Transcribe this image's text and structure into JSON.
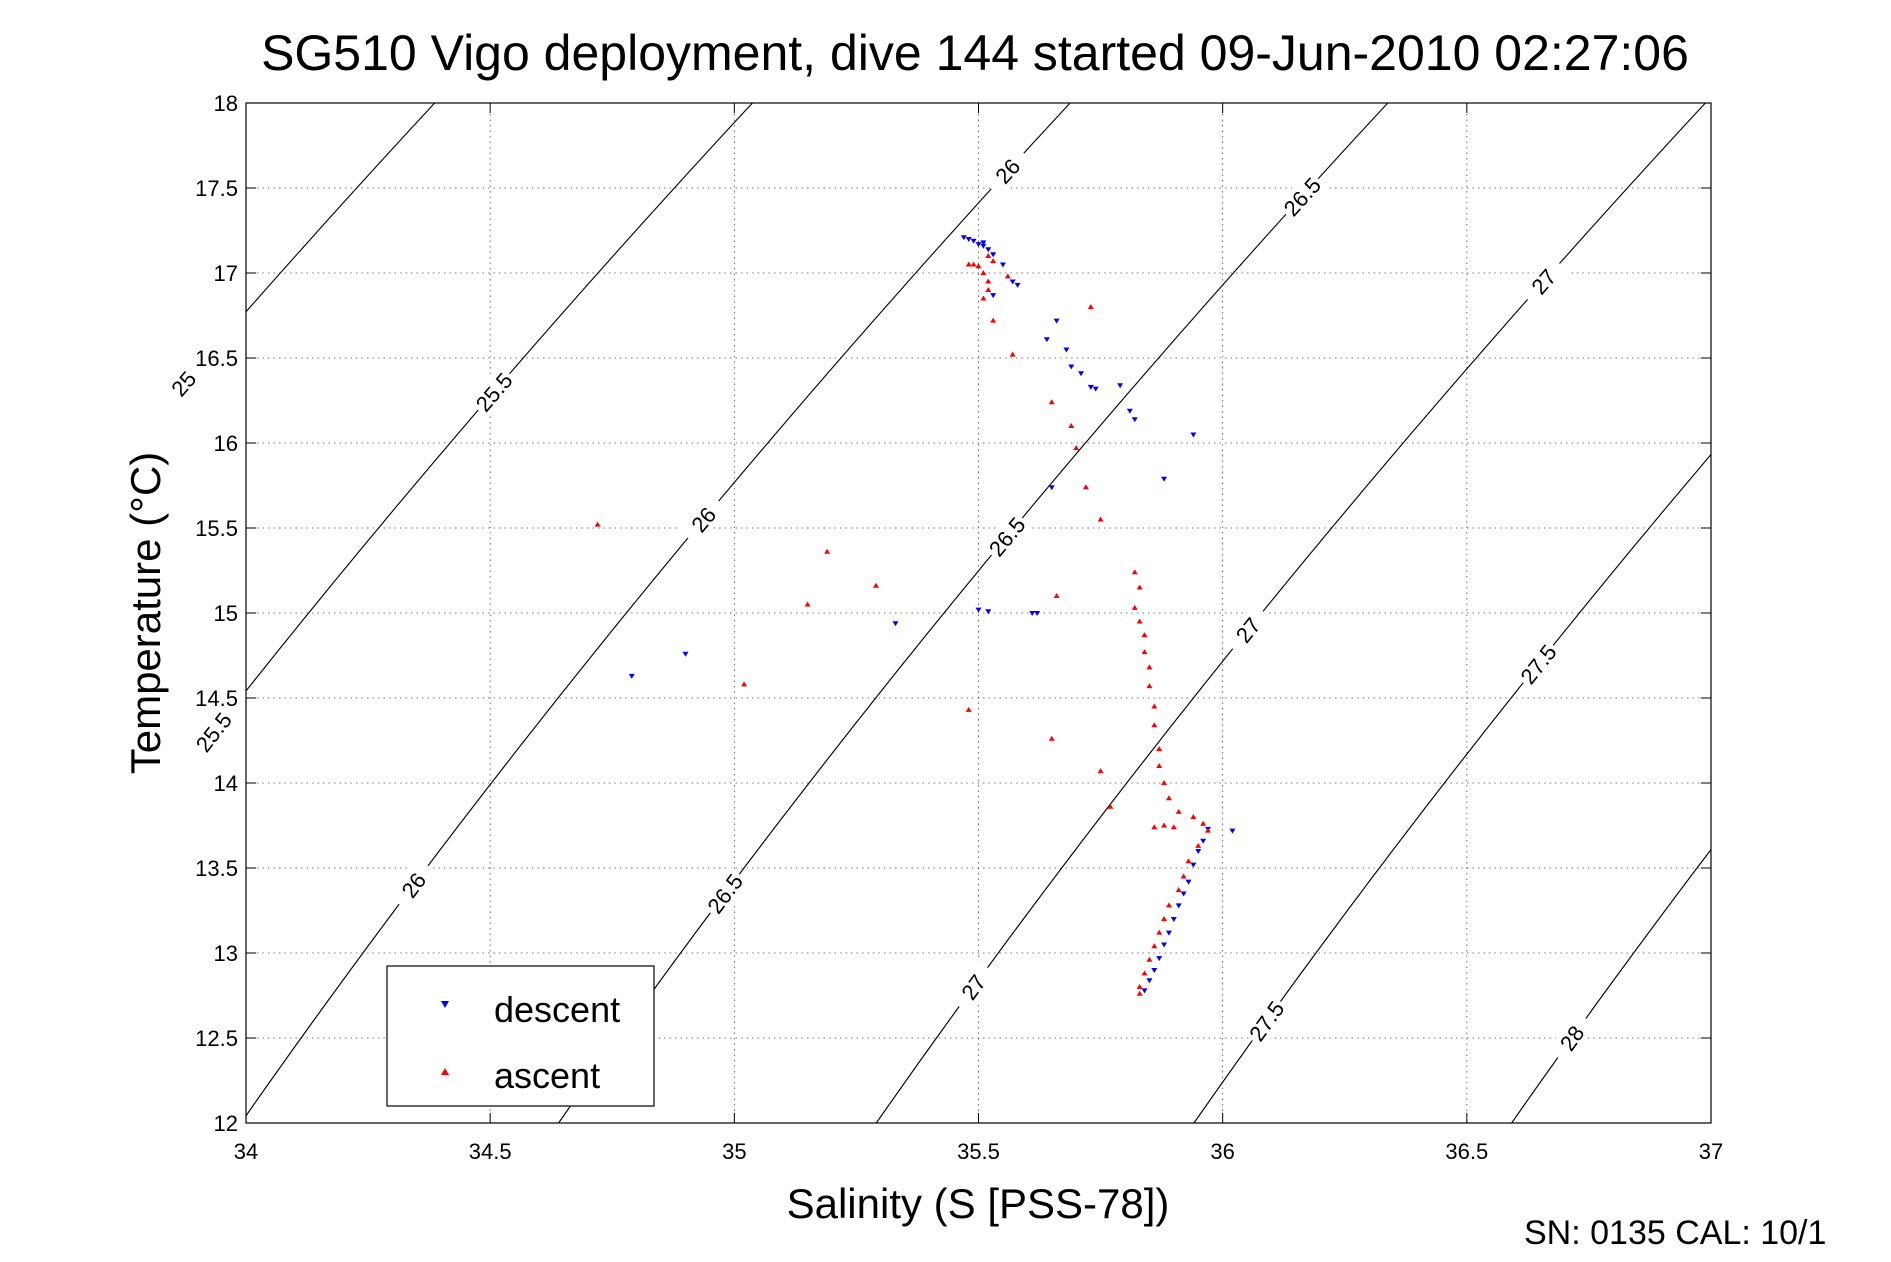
{
  "chart_data": {
    "type": "scatter",
    "title": "SG510 Vigo deployment, dive 144 started 09-Jun-2010 02:27:06",
    "xlabel": "Salinity (S [PSS-78])",
    "ylabel": "Temperature (°C)",
    "xlim": [
      34,
      37
    ],
    "ylim": [
      12,
      18
    ],
    "xticks": [
      "34",
      "34.5",
      "35",
      "35.5",
      "36",
      "36.5",
      "37"
    ],
    "yticks": [
      "12",
      "12.5",
      "13",
      "13.5",
      "14",
      "14.5",
      "15",
      "15.5",
      "16",
      "16.5",
      "17",
      "17.5",
      "18"
    ],
    "grid": true,
    "legend_position": "bottom-left",
    "footer": "SN: 0135  CAL: 10/1",
    "series": [
      {
        "name": "descent",
        "color": "#0000ff",
        "marker": "triangle-down",
        "points": [
          [
            35.47,
            17.21
          ],
          [
            35.48,
            17.2
          ],
          [
            35.49,
            17.19
          ],
          [
            35.5,
            17.17
          ],
          [
            35.51,
            17.16
          ],
          [
            35.52,
            17.14
          ],
          [
            35.53,
            17.11
          ],
          [
            35.51,
            17.18
          ],
          [
            35.55,
            17.05
          ],
          [
            35.57,
            16.95
          ],
          [
            35.58,
            16.93
          ],
          [
            35.53,
            16.87
          ],
          [
            35.66,
            16.72
          ],
          [
            35.64,
            16.61
          ],
          [
            35.68,
            16.55
          ],
          [
            35.69,
            16.45
          ],
          [
            35.71,
            16.41
          ],
          [
            35.73,
            16.33
          ],
          [
            35.74,
            16.32
          ],
          [
            35.79,
            16.34
          ],
          [
            35.81,
            16.19
          ],
          [
            35.82,
            16.14
          ],
          [
            35.94,
            16.05
          ],
          [
            35.88,
            15.79
          ],
          [
            35.65,
            15.74
          ],
          [
            35.5,
            15.02
          ],
          [
            35.52,
            15.01
          ],
          [
            35.61,
            15.0
          ],
          [
            35.62,
            15.0
          ],
          [
            35.33,
            14.94
          ],
          [
            34.9,
            14.76
          ],
          [
            34.79,
            14.63
          ],
          [
            36.02,
            13.72
          ],
          [
            35.97,
            13.73
          ],
          [
            35.96,
            13.66
          ],
          [
            35.95,
            13.6
          ],
          [
            35.94,
            13.52
          ],
          [
            35.93,
            13.42
          ],
          [
            35.92,
            13.35
          ],
          [
            35.91,
            13.28
          ],
          [
            35.9,
            13.2
          ],
          [
            35.89,
            13.12
          ],
          [
            35.88,
            13.05
          ],
          [
            35.87,
            12.97
          ],
          [
            35.86,
            12.9
          ],
          [
            35.85,
            12.84
          ],
          [
            35.84,
            12.78
          ]
        ]
      },
      {
        "name": "ascent",
        "color": "#ff0000",
        "marker": "triangle-up",
        "points": [
          [
            35.48,
            17.05
          ],
          [
            35.49,
            17.05
          ],
          [
            35.5,
            17.04
          ],
          [
            35.52,
            17.1
          ],
          [
            35.53,
            17.07
          ],
          [
            35.51,
            17.0
          ],
          [
            35.52,
            16.95
          ],
          [
            35.52,
            16.9
          ],
          [
            35.51,
            16.85
          ],
          [
            35.56,
            16.98
          ],
          [
            35.53,
            16.72
          ],
          [
            35.57,
            16.52
          ],
          [
            35.73,
            16.8
          ],
          [
            35.65,
            16.24
          ],
          [
            35.69,
            16.1
          ],
          [
            35.7,
            15.97
          ],
          [
            35.72,
            15.74
          ],
          [
            35.75,
            15.55
          ],
          [
            35.66,
            15.1
          ],
          [
            34.72,
            15.52
          ],
          [
            35.19,
            15.36
          ],
          [
            35.29,
            15.16
          ],
          [
            35.15,
            15.05
          ],
          [
            35.02,
            14.58
          ],
          [
            35.48,
            14.43
          ],
          [
            35.65,
            14.26
          ],
          [
            35.75,
            14.07
          ],
          [
            35.77,
            13.86
          ],
          [
            35.82,
            15.24
          ],
          [
            35.83,
            15.15
          ],
          [
            35.82,
            15.03
          ],
          [
            35.83,
            14.95
          ],
          [
            35.84,
            14.87
          ],
          [
            35.84,
            14.77
          ],
          [
            35.85,
            14.68
          ],
          [
            35.85,
            14.57
          ],
          [
            35.86,
            14.45
          ],
          [
            35.86,
            14.34
          ],
          [
            35.87,
            14.2
          ],
          [
            35.87,
            14.1
          ],
          [
            35.88,
            14.0
          ],
          [
            35.89,
            13.91
          ],
          [
            35.91,
            13.83
          ],
          [
            35.94,
            13.8
          ],
          [
            35.96,
            13.76
          ],
          [
            35.86,
            13.74
          ],
          [
            35.88,
            13.75
          ],
          [
            35.9,
            13.74
          ],
          [
            35.97,
            13.72
          ],
          [
            35.95,
            13.63
          ],
          [
            35.93,
            13.54
          ],
          [
            35.92,
            13.45
          ],
          [
            35.91,
            13.37
          ],
          [
            35.89,
            13.28
          ],
          [
            35.88,
            13.2
          ],
          [
            35.87,
            13.12
          ],
          [
            35.86,
            13.04
          ],
          [
            35.85,
            12.96
          ],
          [
            35.84,
            12.88
          ],
          [
            35.83,
            12.8
          ],
          [
            35.83,
            12.76
          ]
        ]
      }
    ],
    "contours": [
      {
        "sigma": 25,
        "labels": [
          {
            "text": "25",
            "t": 16.35
          }
        ]
      },
      {
        "sigma": 25.5,
        "labels": [
          {
            "text": "25.5",
            "t": 16.3
          },
          {
            "text": "25.5",
            "t": 14.3
          }
        ]
      },
      {
        "sigma": 26,
        "labels": [
          {
            "text": "26",
            "t": 17.6
          },
          {
            "text": "26",
            "t": 15.55
          },
          {
            "text": "26",
            "t": 13.4
          }
        ]
      },
      {
        "sigma": 26.5,
        "labels": [
          {
            "text": "26.5",
            "t": 17.45
          },
          {
            "text": "26.5",
            "t": 15.45
          },
          {
            "text": "26.5",
            "t": 13.35
          }
        ]
      },
      {
        "sigma": 27,
        "labels": [
          {
            "text": "27",
            "t": 16.95
          },
          {
            "text": "27",
            "t": 14.9
          },
          {
            "text": "27",
            "t": 12.8
          }
        ]
      },
      {
        "sigma": 27.5,
        "labels": [
          {
            "text": "27.5",
            "t": 14.7
          },
          {
            "text": "27.5",
            "t": 12.6
          }
        ]
      },
      {
        "sigma": 28,
        "labels": [
          {
            "text": "28",
            "t": 12.5
          }
        ]
      }
    ]
  }
}
